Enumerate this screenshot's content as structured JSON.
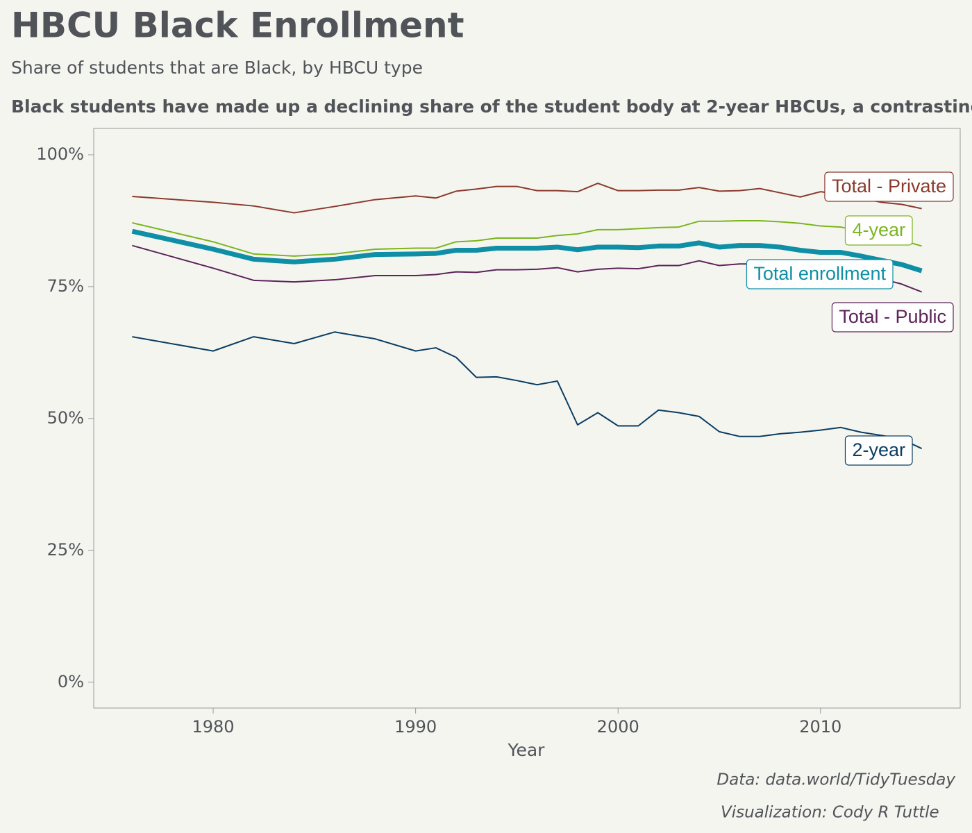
{
  "chart_data": {
    "type": "line",
    "title": "HBCU Black Enrollment",
    "subtitle": "Share of students that are Black, by HBCU type",
    "caption": "Black students have made up a declining share of the student body at 2-year HBCUs, a contrasting pat",
    "x_label": "Year",
    "source": "Data: data.world/TidyTuesday",
    "credit": "Visualization: Cody R Tuttle",
    "x": [
      1976,
      1980,
      1982,
      1984,
      1986,
      1988,
      1990,
      1991,
      1992,
      1993,
      1994,
      1995,
      1996,
      1997,
      1998,
      1999,
      2000,
      2001,
      2002,
      2003,
      2004,
      2005,
      2006,
      2007,
      2008,
      2009,
      2010,
      2011,
      2012,
      2013,
      2014,
      2015
    ],
    "xlim": [
      1974.1,
      2016.9
    ],
    "xticks": [
      1980,
      1990,
      2000,
      2010
    ],
    "ylim": [
      -4.9,
      105
    ],
    "yticks": [
      {
        "value": 0,
        "label": "0%"
      },
      {
        "value": 25,
        "label": "25%"
      },
      {
        "value": 50,
        "label": "50%"
      },
      {
        "value": 75,
        "label": "75%"
      },
      {
        "value": 100,
        "label": "100%"
      }
    ],
    "series": [
      {
        "name": "Total - Private",
        "color": "#8b3a2b",
        "line_width": 2,
        "values": [
          92.1,
          91,
          90.3,
          89,
          90.2,
          91.5,
          92.2,
          91.8,
          93.1,
          93.5,
          94,
          94,
          93.2,
          93.2,
          93,
          94.6,
          93.2,
          93.2,
          93.3,
          93.3,
          93.8,
          93.1,
          93.2,
          93.6,
          92.8,
          92,
          93,
          92.5,
          91.8,
          91,
          90.6,
          89.8
        ]
      },
      {
        "name": "4-year",
        "color": "#7ab51d",
        "line_width": 2,
        "values": [
          87.1,
          83.5,
          81.2,
          80.8,
          81.2,
          82.1,
          82.3,
          82.3,
          83.5,
          83.7,
          84.2,
          84.2,
          84.2,
          84.7,
          85,
          85.8,
          85.8,
          86,
          86.2,
          86.3,
          87.4,
          87.4,
          87.5,
          87.5,
          87.3,
          87,
          86.5,
          86.3,
          85.5,
          84.7,
          83.8,
          82.7
        ]
      },
      {
        "name": "Total enrollment",
        "color": "#0e8fa6",
        "line_width": 7,
        "values": [
          85.5,
          82.1,
          80.2,
          79.7,
          80.2,
          81.1,
          81.2,
          81.3,
          81.9,
          81.9,
          82.3,
          82.3,
          82.3,
          82.5,
          82,
          82.5,
          82.5,
          82.4,
          82.7,
          82.7,
          83.3,
          82.5,
          82.8,
          82.8,
          82.5,
          81.9,
          81.5,
          81.5,
          80.8,
          80,
          79.2,
          78
        ]
      },
      {
        "name": "Total - Public",
        "color": "#5c2358",
        "line_width": 2,
        "values": [
          82.8,
          78.5,
          76.2,
          75.9,
          76.3,
          77.1,
          77.1,
          77.3,
          77.8,
          77.7,
          78.2,
          78.2,
          78.3,
          78.6,
          77.8,
          78.3,
          78.5,
          78.4,
          79,
          79,
          79.9,
          79,
          79.3,
          79.3,
          79,
          78.5,
          78,
          78,
          77.2,
          76.5,
          75.5,
          74
        ]
      },
      {
        "name": "2-year",
        "color": "#0a3d62",
        "line_width": 2,
        "values": [
          65.5,
          62.8,
          65.5,
          64.2,
          66.4,
          65.1,
          62.8,
          63.4,
          61.6,
          57.8,
          57.9,
          57.2,
          56.4,
          57.1,
          48.8,
          51.1,
          48.6,
          48.6,
          51.6,
          51.1,
          50.4,
          47.5,
          46.6,
          46.6,
          47.1,
          47.4,
          47.8,
          48.3,
          47.4,
          46.8,
          46.1,
          44.3
        ]
      }
    ]
  }
}
